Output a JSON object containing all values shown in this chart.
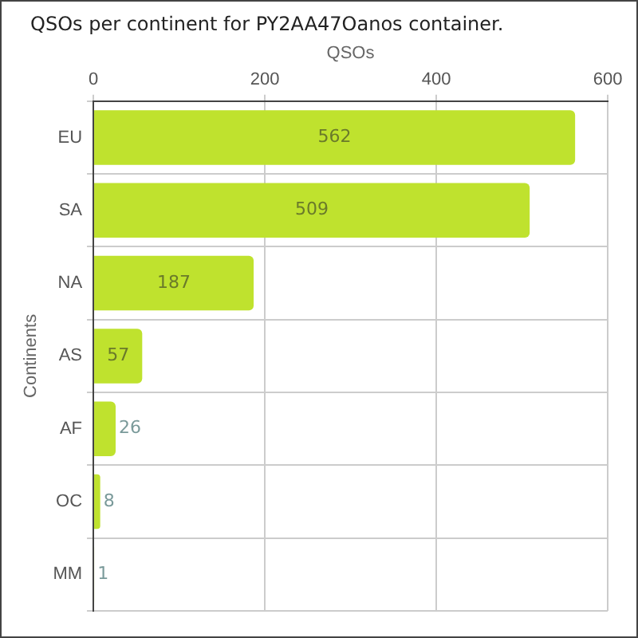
{
  "chart_data": {
    "type": "bar",
    "orientation": "horizontal",
    "title": "QSOs per continent for PY2AA47Oanos container.",
    "xlabel": "QSOs",
    "ylabel": "Continents",
    "categories": [
      "EU",
      "SA",
      "NA",
      "AS",
      "AF",
      "OC",
      "MM"
    ],
    "values": [
      562,
      509,
      187,
      57,
      26,
      8,
      1
    ],
    "color": "#bfe22e",
    "xlim": [
      0,
      600
    ],
    "xticks": [
      0,
      200,
      400,
      600
    ],
    "grid": true,
    "data_labels": true,
    "legend": false
  }
}
